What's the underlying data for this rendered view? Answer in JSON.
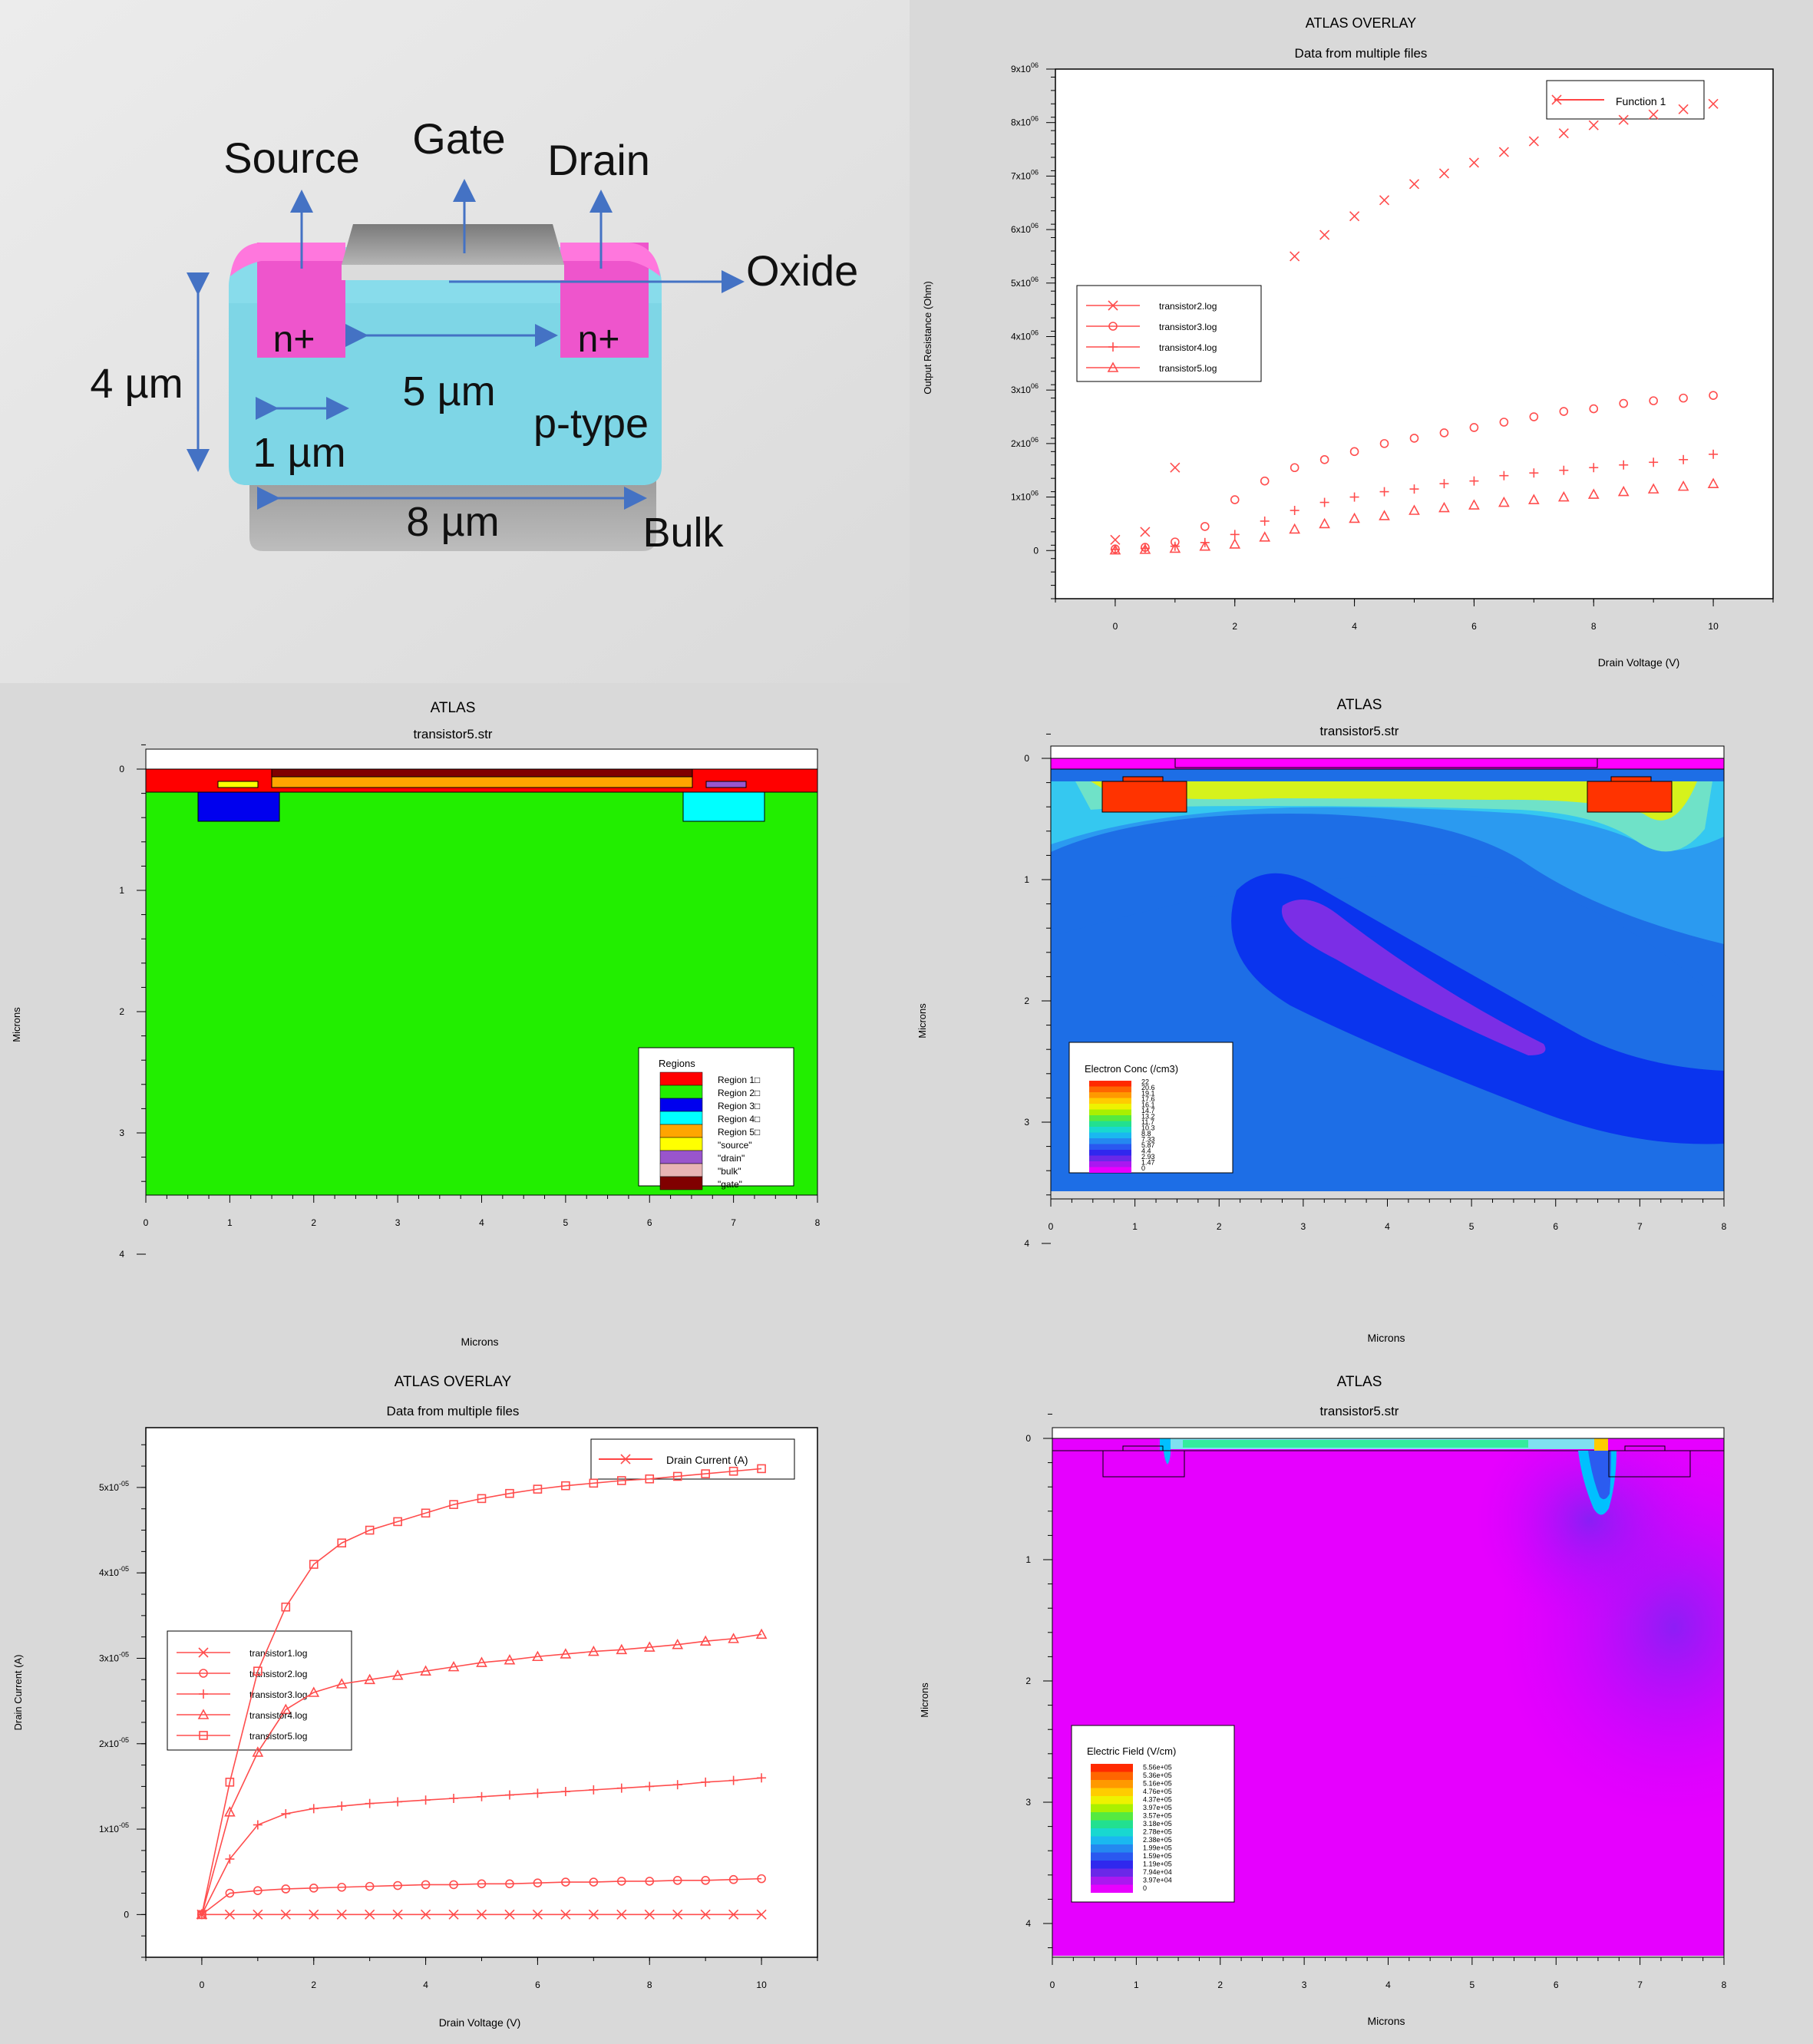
{
  "device": {
    "labels": {
      "source": "Source",
      "gate": "Gate",
      "drain": "Drain",
      "oxide": "Oxide",
      "n_left": "n+",
      "n_right": "n+",
      "p_type": "p-type",
      "bulk": "Bulk"
    },
    "dims": {
      "height": "4 µm",
      "channel": "5 µm",
      "contact": "1 µm",
      "bulk_width": "8 µm"
    }
  },
  "panel_resistance": {
    "title": "ATLAS OVERLAY",
    "subtitle": "Data from multiple files",
    "legend_top": "Function 1",
    "chart_data": {
      "type": "scatter",
      "title": "ATLAS OVERLAY",
      "xlabel": "Drain Voltage (V)",
      "ylabel": "Output Resistance (Ohm)",
      "xlim": [
        -1,
        11
      ],
      "ylim": [
        -900000,
        9000000
      ],
      "x_ticks": [
        "0",
        "2",
        "4",
        "6",
        "8",
        "10"
      ],
      "y_ticks": [
        "0",
        "1x10^06",
        "2x10^06",
        "3x10^06",
        "4x10^06",
        "5x10^06",
        "6x10^06",
        "7x10^06",
        "8x10^06",
        "9x10^06"
      ],
      "x": [
        0,
        0.5,
        1,
        1.5,
        2,
        2.5,
        3,
        3.5,
        4,
        4.5,
        5,
        5.5,
        6,
        6.5,
        7,
        7.5,
        8,
        8.5,
        9,
        9.5,
        10
      ],
      "series": [
        {
          "name": "transistor2.log",
          "marker": "x",
          "values": [
            200000,
            350000,
            1550000,
            null,
            null,
            null,
            5500000,
            5900000,
            6250000,
            6550000,
            6850000,
            7050000,
            7250000,
            7450000,
            7650000,
            7800000,
            7950000,
            8050000,
            8150000,
            8250000,
            8350000
          ]
        },
        {
          "name": "transistor3.log",
          "marker": "o",
          "values": [
            30000,
            60000,
            160000,
            450000,
            950000,
            1300000,
            1550000,
            1700000,
            1850000,
            2000000,
            2100000,
            2200000,
            2300000,
            2400000,
            2500000,
            2600000,
            2650000,
            2750000,
            2800000,
            2850000,
            2900000
          ]
        },
        {
          "name": "transistor4.log",
          "marker": "+",
          "values": [
            20000,
            40000,
            80000,
            150000,
            300000,
            550000,
            750000,
            900000,
            1000000,
            1100000,
            1150000,
            1250000,
            1300000,
            1400000,
            1450000,
            1500000,
            1550000,
            1600000,
            1650000,
            1700000,
            1800000
          ]
        },
        {
          "name": "transistor5.log",
          "marker": "triangle",
          "values": [
            10000,
            20000,
            40000,
            80000,
            120000,
            250000,
            400000,
            500000,
            600000,
            650000,
            750000,
            800000,
            850000,
            900000,
            950000,
            1000000,
            1050000,
            1100000,
            1150000,
            1200000,
            1250000
          ]
        }
      ]
    }
  },
  "panel_regions": {
    "title": "ATLAS",
    "subtitle": "transistor5.str",
    "xlabel": "Microns",
    "ylabel": "Microns",
    "x_ticks": [
      "0",
      "1",
      "2",
      "3",
      "4",
      "5",
      "6",
      "7",
      "8"
    ],
    "y_ticks": [
      "0",
      "1",
      "2",
      "3",
      "4"
    ],
    "legend_title": "Regions",
    "legend": [
      {
        "label": "Region 1□",
        "color": "#ff0000"
      },
      {
        "label": "Region 2□",
        "color": "#22ee00"
      },
      {
        "label": "Region 3□",
        "color": "#0000ee"
      },
      {
        "label": "Region 4□",
        "color": "#00ffff"
      },
      {
        "label": "Region 5□",
        "color": "#ffa500"
      },
      {
        "label": "\"source\"",
        "color": "#ffff00"
      },
      {
        "label": "\"drain\"",
        "color": "#9955cc"
      },
      {
        "label": "\"bulk\"",
        "color": "#e8b4b4"
      },
      {
        "label": "\"gate\"",
        "color": "#800000"
      }
    ]
  },
  "panel_electron": {
    "title": "ATLAS",
    "subtitle": "transistor5.str",
    "xlabel": "Microns",
    "ylabel": "Microns",
    "x_ticks": [
      "0",
      "1",
      "2",
      "3",
      "4",
      "5",
      "6",
      "7",
      "8"
    ],
    "y_ticks": [
      "0",
      "1",
      "2",
      "3",
      "4"
    ],
    "legend_title": "Electron Conc (/cm3)",
    "legend_values": [
      "22",
      "20.6",
      "19.1",
      "17.6",
      "16.1",
      "14.7",
      "13.2",
      "11.7",
      "10.3",
      "8.8",
      "7.33",
      "5.87",
      "4.4",
      "2.93",
      "1.47",
      "0"
    ]
  },
  "panel_current": {
    "title": "ATLAS OVERLAY",
    "subtitle": "Data from multiple files",
    "legend_top": "Drain Current (A)",
    "chart_data": {
      "type": "line",
      "title": "ATLAS OVERLAY",
      "xlabel": "Drain Voltage (V)",
      "ylabel": "Drain Current (A)",
      "xlim": [
        -1,
        11
      ],
      "ylim": [
        -5e-06,
        5.7e-05
      ],
      "x_ticks": [
        "0",
        "2",
        "4",
        "6",
        "8",
        "10"
      ],
      "y_ticks": [
        "0",
        "1x10^-05",
        "2x10^-05",
        "3x10^-05",
        "4x10^-05",
        "5x10^-05"
      ],
      "x": [
        0,
        0.5,
        1,
        1.5,
        2,
        2.5,
        3,
        3.5,
        4,
        4.5,
        5,
        5.5,
        6,
        6.5,
        7,
        7.5,
        8,
        8.5,
        9,
        9.5,
        10
      ],
      "series": [
        {
          "name": "transistor1.log",
          "marker": "x",
          "values": [
            0,
            0,
            0,
            0,
            0,
            0,
            0,
            0,
            0,
            0,
            0,
            0,
            0,
            0,
            0,
            0,
            0,
            0,
            0,
            0,
            0
          ]
        },
        {
          "name": "transistor2.log",
          "marker": "o",
          "values": [
            0,
            2.5e-06,
            2.8e-06,
            3e-06,
            3.1e-06,
            3.2e-06,
            3.3e-06,
            3.4e-06,
            3.5e-06,
            3.5e-06,
            3.6e-06,
            3.6e-06,
            3.7e-06,
            3.8e-06,
            3.8e-06,
            3.9e-06,
            3.9e-06,
            4e-06,
            4e-06,
            4.1e-06,
            4.2e-06
          ]
        },
        {
          "name": "transistor3.log",
          "marker": "+",
          "values": [
            0,
            6.5e-06,
            1.05e-05,
            1.18e-05,
            1.24e-05,
            1.27e-05,
            1.3e-05,
            1.32e-05,
            1.34e-05,
            1.36e-05,
            1.38e-05,
            1.4e-05,
            1.42e-05,
            1.44e-05,
            1.46e-05,
            1.48e-05,
            1.5e-05,
            1.52e-05,
            1.55e-05,
            1.57e-05,
            1.6e-05
          ]
        },
        {
          "name": "transistor4.log",
          "marker": "triangle",
          "values": [
            0,
            1.2e-05,
            1.9e-05,
            2.4e-05,
            2.6e-05,
            2.7e-05,
            2.75e-05,
            2.8e-05,
            2.85e-05,
            2.9e-05,
            2.95e-05,
            2.98e-05,
            3.02e-05,
            3.05e-05,
            3.08e-05,
            3.1e-05,
            3.13e-05,
            3.16e-05,
            3.2e-05,
            3.23e-05,
            3.28e-05
          ]
        },
        {
          "name": "transistor5.log",
          "marker": "square",
          "values": [
            0,
            1.55e-05,
            2.85e-05,
            3.6e-05,
            4.1e-05,
            4.35e-05,
            4.5e-05,
            4.6e-05,
            4.7e-05,
            4.8e-05,
            4.87e-05,
            4.93e-05,
            4.98e-05,
            5.02e-05,
            5.05e-05,
            5.08e-05,
            5.1e-05,
            5.13e-05,
            5.16e-05,
            5.19e-05,
            5.22e-05
          ]
        }
      ]
    }
  },
  "panel_field": {
    "title": "ATLAS",
    "subtitle": "transistor5.str",
    "xlabel": "Microns",
    "ylabel": "Microns",
    "x_ticks": [
      "0",
      "1",
      "2",
      "3",
      "4",
      "5",
      "6",
      "7",
      "8"
    ],
    "y_ticks": [
      "0",
      "1",
      "2",
      "3",
      "4"
    ],
    "legend_title": "Electric Field (V/cm)",
    "legend_values": [
      "5.56e+05",
      "5.36e+05",
      "5.16e+05",
      "4.76e+05",
      "4.37e+05",
      "3.97e+05",
      "3.57e+05",
      "3.18e+05",
      "2.78e+05",
      "2.38e+05",
      "1.99e+05",
      "1.59e+05",
      "1.19e+05",
      "7.94e+04",
      "3.97e+04",
      "0"
    ]
  }
}
